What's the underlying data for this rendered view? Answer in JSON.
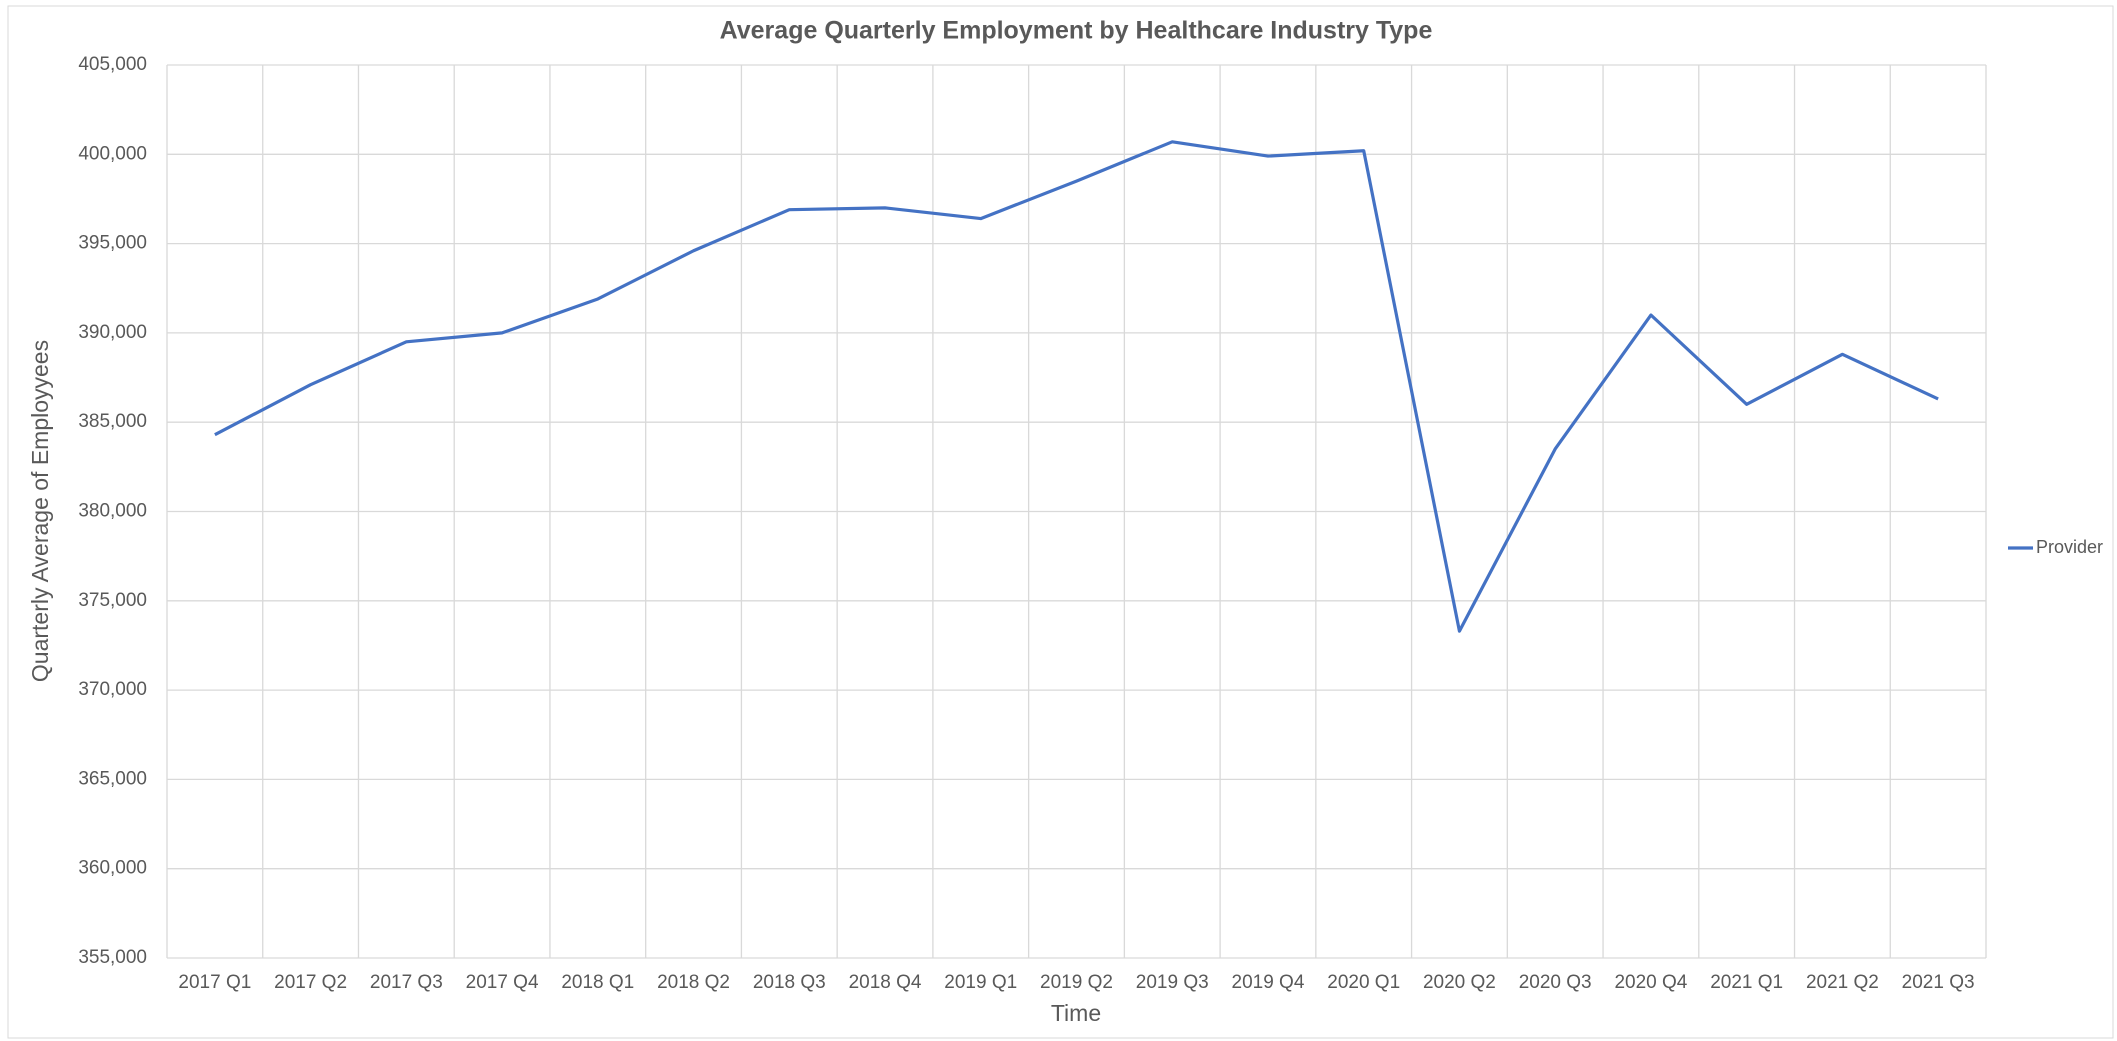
{
  "chart_data": {
    "type": "line",
    "title": "Average Quarterly Employment by Healthcare Industry Type",
    "x_label": "Time",
    "y_label": "Quarterly Average of Employyees",
    "categories": [
      "2017 Q1",
      "2017 Q2",
      "2017 Q3",
      "2017 Q4",
      "2018 Q1",
      "2018 Q2",
      "2018 Q3",
      "2018 Q4",
      "2019 Q1",
      "2019 Q2",
      "2019 Q3",
      "2019 Q4",
      "2020 Q1",
      "2020 Q2",
      "2020 Q3",
      "2020 Q4",
      "2021 Q1",
      "2021 Q2",
      "2021 Q3"
    ],
    "series": [
      {
        "name": "Provider",
        "color": "#4472c4",
        "values": [
          384300,
          387100,
          389500,
          390000,
          391900,
          394600,
          396900,
          397000,
          396400,
          398500,
          400700,
          399900,
          400200,
          373300,
          383500,
          391000,
          386000,
          388800,
          386300
        ]
      }
    ],
    "ylim": [
      355000,
      405000
    ],
    "yticks": [
      {
        "value": 355000,
        "label": "355,000"
      },
      {
        "value": 360000,
        "label": "360,000"
      },
      {
        "value": 365000,
        "label": "365,000"
      },
      {
        "value": 370000,
        "label": "370,000"
      },
      {
        "value": 375000,
        "label": "375,000"
      },
      {
        "value": 380000,
        "label": "380,000"
      },
      {
        "value": 385000,
        "label": "385,000"
      },
      {
        "value": 390000,
        "label": "390,000"
      },
      {
        "value": 395000,
        "label": "395,000"
      },
      {
        "value": 400000,
        "label": "400,000"
      },
      {
        "value": 405000,
        "label": "405,000"
      }
    ],
    "grid": true,
    "legend": "right"
  }
}
